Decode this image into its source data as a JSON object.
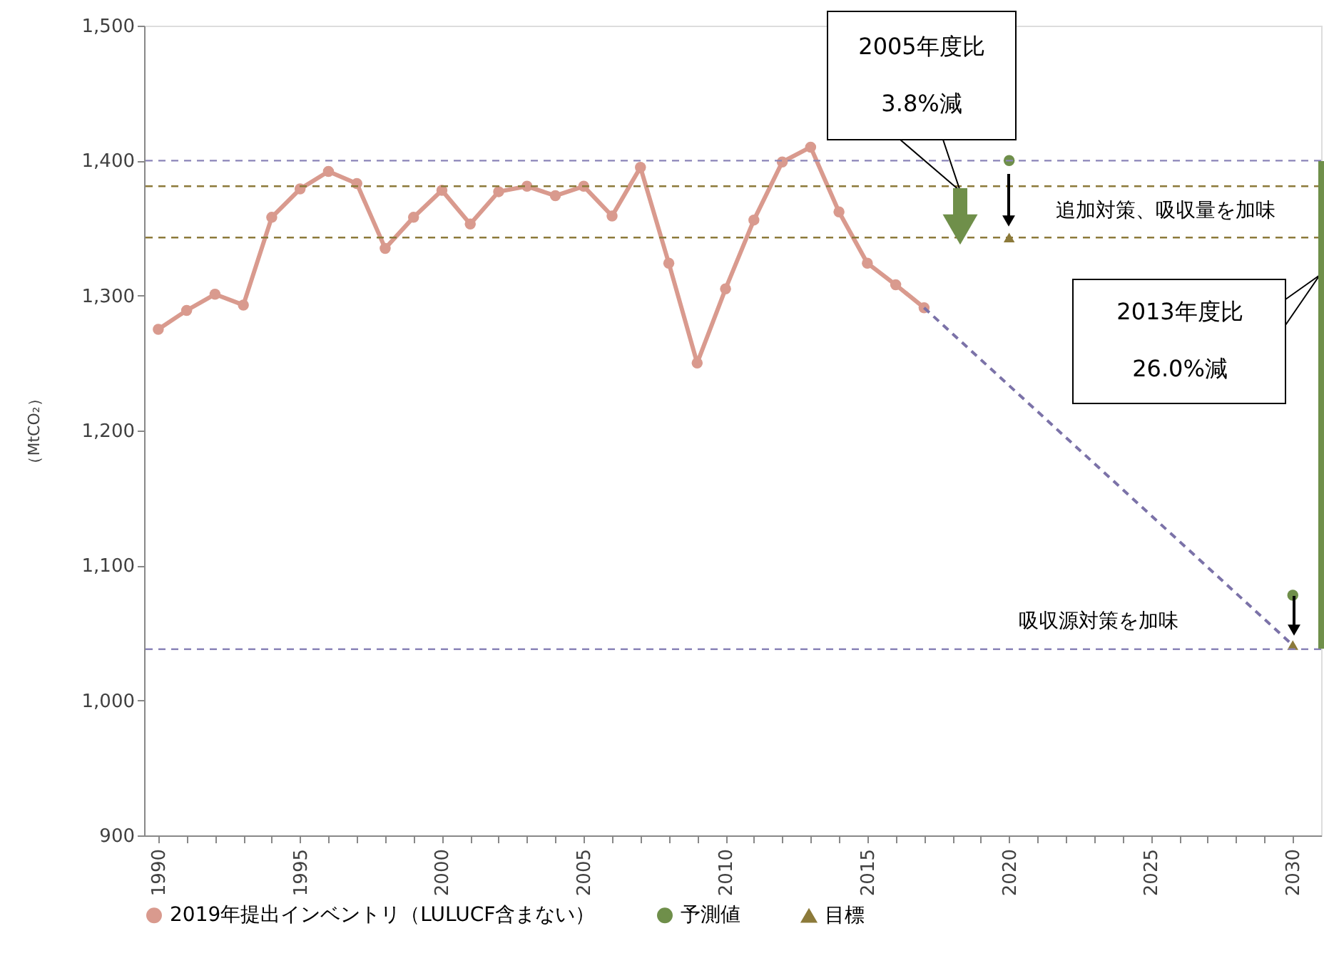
{
  "chart_data": {
    "type": "line",
    "ylabel": "（MtCO₂）",
    "xlim": [
      1989.5,
      2031
    ],
    "ylim": [
      900,
      1500
    ],
    "yticks": [
      900,
      {
        "value": 1000,
        "label": "1,000"
      },
      {
        "value": 1100,
        "label": "1,100"
      },
      {
        "value": 1200,
        "label": "1,200"
      },
      {
        "value": 1300,
        "label": "1,300"
      },
      {
        "value": 1400,
        "label": "1,400"
      },
      {
        "value": 1500,
        "label": "1,500"
      }
    ],
    "xticks": [
      1990,
      {
        "value": 1991,
        "label": null
      },
      {
        "value": 1992,
        "label": null
      },
      {
        "value": 1993,
        "label": null
      },
      {
        "value": 1994,
        "label": null
      },
      1995,
      {
        "value": 1996,
        "label": null
      },
      {
        "value": 1997,
        "label": null
      },
      {
        "value": 1998,
        "label": null
      },
      {
        "value": 1999,
        "label": null
      },
      2000,
      {
        "value": 2001,
        "label": null
      },
      {
        "value": 2002,
        "label": null
      },
      {
        "value": 2003,
        "label": null
      },
      {
        "value": 2004,
        "label": null
      },
      2005,
      {
        "value": 2006,
        "label": null
      },
      {
        "value": 2007,
        "label": null
      },
      {
        "value": 2008,
        "label": null
      },
      {
        "value": 2009,
        "label": null
      },
      2010,
      {
        "value": 2011,
        "label": null
      },
      {
        "value": 2012,
        "label": null
      },
      {
        "value": 2013,
        "label": null
      },
      {
        "value": 2014,
        "label": null
      },
      2015,
      {
        "value": 2016,
        "label": null
      },
      {
        "value": 2017,
        "label": null
      },
      {
        "value": 2018,
        "label": null
      },
      {
        "value": 2019,
        "label": null
      },
      2020,
      {
        "value": 2021,
        "label": null
      },
      {
        "value": 2022,
        "label": null
      },
      {
        "value": 2023,
        "label": null
      },
      {
        "value": 2024,
        "label": null
      },
      2025,
      {
        "value": 2026,
        "label": null
      },
      {
        "value": 2027,
        "label": null
      },
      {
        "value": 2028,
        "label": null
      },
      {
        "value": 2029,
        "label": null
      },
      2030
    ],
    "grid": false,
    "legend": "bottom",
    "series": [
      {
        "name": "2019年提出インベントリ（LULUCF含まない）",
        "marker": "circle",
        "line_style": "solid",
        "color": "#d99a8e",
        "x": [
          1990,
          1991,
          1992,
          1993,
          1994,
          1995,
          1996,
          1997,
          1998,
          1999,
          2000,
          2001,
          2002,
          2003,
          2004,
          2005,
          2006,
          2007,
          2008,
          2009,
          2010,
          2011,
          2012,
          2013,
          2014,
          2015,
          2016,
          2017
        ],
        "values": [
          1275,
          1289,
          1301,
          1293,
          1358,
          1379,
          1392,
          1383,
          1335,
          1358,
          1378,
          1353,
          1377,
          1381,
          1374,
          1381,
          1359,
          1395,
          1324,
          1250,
          1305,
          1356,
          1399,
          1410,
          1362,
          1324,
          1308,
          1291
        ]
      },
      {
        "marker": "none",
        "line_style": "dashed",
        "color": "#7b72a8",
        "x": [
          2017,
          2030
        ],
        "values": [
          1291,
          1041
        ]
      },
      {
        "name": "予測値",
        "type": "scatter",
        "marker": "circle",
        "color": "#6f8f4a",
        "x": [
          2020,
          2030
        ],
        "values": [
          1400,
          1078
        ]
      },
      {
        "name": "目標",
        "type": "scatter",
        "marker": "triangle",
        "color": "#8c7a3a",
        "x": [
          2020,
          2030
        ],
        "values": [
          1343,
          1041
        ]
      }
    ],
    "ref_lines": [
      {
        "axis": "y",
        "value": 1400,
        "color": "#8a84b8",
        "line_style": "dashed"
      },
      {
        "axis": "y",
        "value": 1381,
        "color": "#8c7a3a",
        "line_style": "dashed"
      },
      {
        "axis": "y",
        "value": 1343,
        "color": "#8c7a3a",
        "line_style": "dashed"
      },
      {
        "axis": "y",
        "value": 1038,
        "color": "#8a84b8",
        "line_style": "dashed"
      }
    ],
    "annotations": [
      "2005年度比\n3.8%減",
      "追加対策、吸収量を加味",
      "2013年度比\n26.0%減",
      "吸収源対策を加味"
    ]
  }
}
